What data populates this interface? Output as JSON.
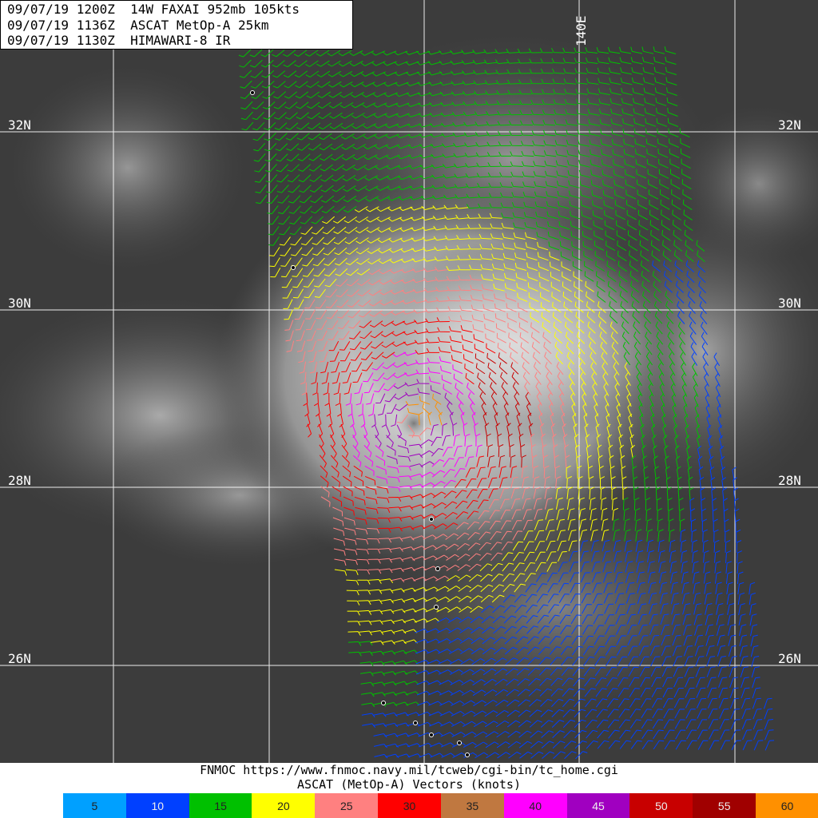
{
  "header": {
    "line1": "09/07/19 1200Z  14W FAXAI 952mb 105kts",
    "line2": "09/07/19 1136Z  ASCAT MetOp-A 25km",
    "line3": "09/07/19 1130Z  HIMAWARI-8 IR"
  },
  "map": {
    "lat_labels": [
      "32N",
      "30N",
      "28N",
      "26N"
    ],
    "lon_label": "140E",
    "storm_center": {
      "lat": 28.9,
      "lon": 138.8
    }
  },
  "footer": {
    "credit": "FNMOC https://www.fnmoc.navy.mil/tcweb/cgi-bin/tc_home.cgi",
    "title": "ASCAT (MetOp-A) Vectors (knots)"
  },
  "legend": [
    {
      "label": "5",
      "color": "#00a0ff"
    },
    {
      "label": "10",
      "color": "#0040ff"
    },
    {
      "label": "15",
      "color": "#00c000"
    },
    {
      "label": "20",
      "color": "#ffff00"
    },
    {
      "label": "25",
      "color": "#ff8080"
    },
    {
      "label": "30",
      "color": "#ff0000"
    },
    {
      "label": "35",
      "color": "#c07840"
    },
    {
      "label": "40",
      "color": "#ff00ff"
    },
    {
      "label": "45",
      "color": "#a000c0"
    },
    {
      "label": "50",
      "color": "#c80000"
    },
    {
      "label": "55",
      "color": "#a00000"
    },
    {
      "label": "60",
      "color": "#ff9000"
    }
  ]
}
